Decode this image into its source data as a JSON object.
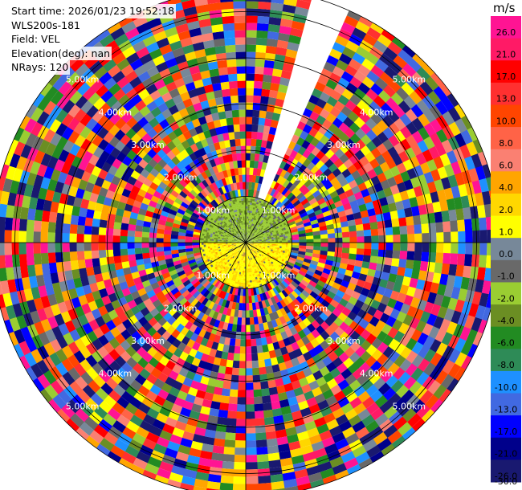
{
  "info": {
    "start_time": "Start time: 2026/01/23 19:52:18",
    "instrument": "WLS200s-181",
    "field": "Field: VEL",
    "elevation": "Elevation(deg): nan",
    "nrays": "NRays: 120"
  },
  "colorbar": {
    "unit": "m/s",
    "levels": [
      {
        "label": "26.0",
        "color": "#ff1493"
      },
      {
        "label": "21.0",
        "color": "#ff1a66"
      },
      {
        "label": "17.0",
        "color": "#ff0000"
      },
      {
        "label": "13.0",
        "color": "#ff3030"
      },
      {
        "label": "10.0",
        "color": "#ff4500"
      },
      {
        "label": "8.0",
        "color": "#ff6347"
      },
      {
        "label": "6.0",
        "color": "#fa8072"
      },
      {
        "label": "4.0",
        "color": "#ffa500"
      },
      {
        "label": "2.0",
        "color": "#ffd700"
      },
      {
        "label": "1.0",
        "color": "#ffff00"
      },
      {
        "label": "0.0",
        "color": "#778899"
      },
      {
        "label": "-1.0",
        "color": "#696969"
      },
      {
        "label": "-2.0",
        "color": "#9acd32"
      },
      {
        "label": "-4.0",
        "color": "#6b8e23"
      },
      {
        "label": "-6.0",
        "color": "#228b22"
      },
      {
        "label": "-8.0",
        "color": "#2e8b57"
      },
      {
        "label": "-10.0",
        "color": "#1e90ff"
      },
      {
        "label": "-13.0",
        "color": "#4169e1"
      },
      {
        "label": "-17.0",
        "color": "#0000ff"
      },
      {
        "label": "-21.0",
        "color": "#00008b"
      },
      {
        "label": "-26.0",
        "color": "#191970"
      },
      {
        "label": "-30.0",
        "color": "#191970"
      }
    ]
  },
  "chart_data": {
    "type": "ppi",
    "field": "VEL",
    "units": "m/s",
    "nrays": 120,
    "range_rings_km": [
      1,
      2,
      3,
      4,
      5
    ],
    "ring_labels": [
      "1.00km",
      "2.00km",
      "3.00km",
      "4.00km",
      "5.00km"
    ],
    "max_range_km": 5.5,
    "gap_azimuth_deg": [
      15,
      24
    ],
    "near_range_negative_sector_azimuth_deg": [
      270,
      90
    ],
    "near_range_positive_sector_azimuth_deg": [
      90,
      270
    ],
    "near_range_km": 1.0,
    "grid": true
  }
}
